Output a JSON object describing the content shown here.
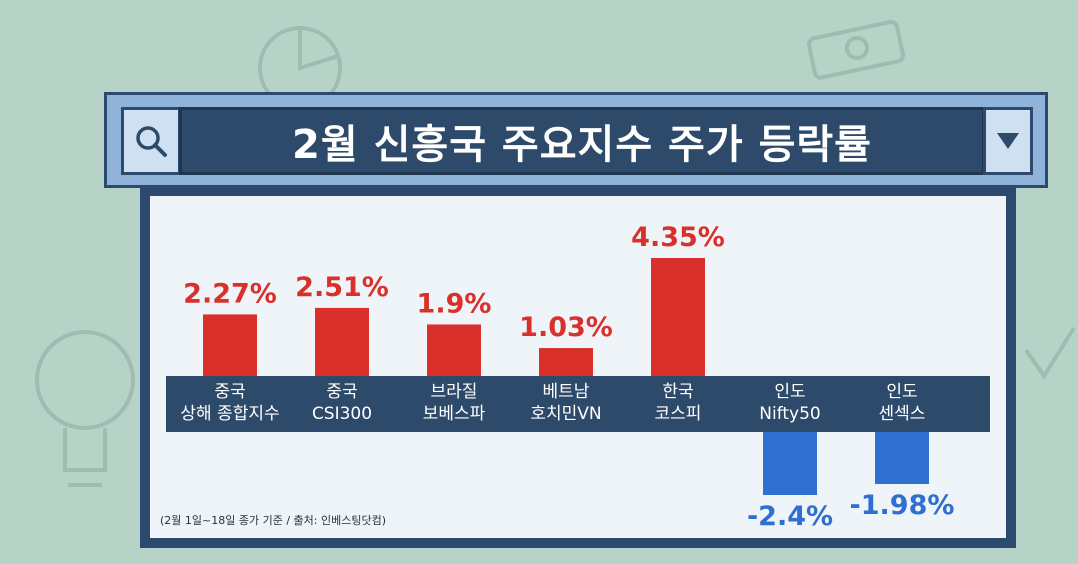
{
  "title": "2월 신흥국 주요지수 주가 등락률",
  "source_note": "(2월 1일~18일 종가 기준 / 출처: 인베스팅닷컴)",
  "icons": {
    "search": "search-icon",
    "dropdown": "chevron-down-icon"
  },
  "colors": {
    "positive": "#d9302c",
    "negative": "#2f6fd0",
    "band": "#2e4a6a"
  },
  "chart_data": {
    "type": "bar",
    "title": "2월 신흥국 주요지수 주가 등락률",
    "categories": [
      [
        "중국",
        "상해 종합지수"
      ],
      [
        "중국",
        "CSI300"
      ],
      [
        "브라질",
        "보베스파"
      ],
      [
        "베트남",
        "호치민VN"
      ],
      [
        "한국",
        "코스피"
      ],
      [
        "인도",
        "Nifty50"
      ],
      [
        "인도",
        "센섹스"
      ]
    ],
    "values": [
      2.27,
      2.51,
      1.9,
      1.03,
      4.35,
      -2.4,
      -1.98
    ],
    "value_labels": [
      "2.27%",
      "2.51%",
      "1.9%",
      "1.03%",
      "4.35%",
      "-2.4%",
      "-1.98%"
    ],
    "unit": "%",
    "ylim": [
      -2.4,
      4.35
    ],
    "grid": false,
    "legend": "none"
  }
}
